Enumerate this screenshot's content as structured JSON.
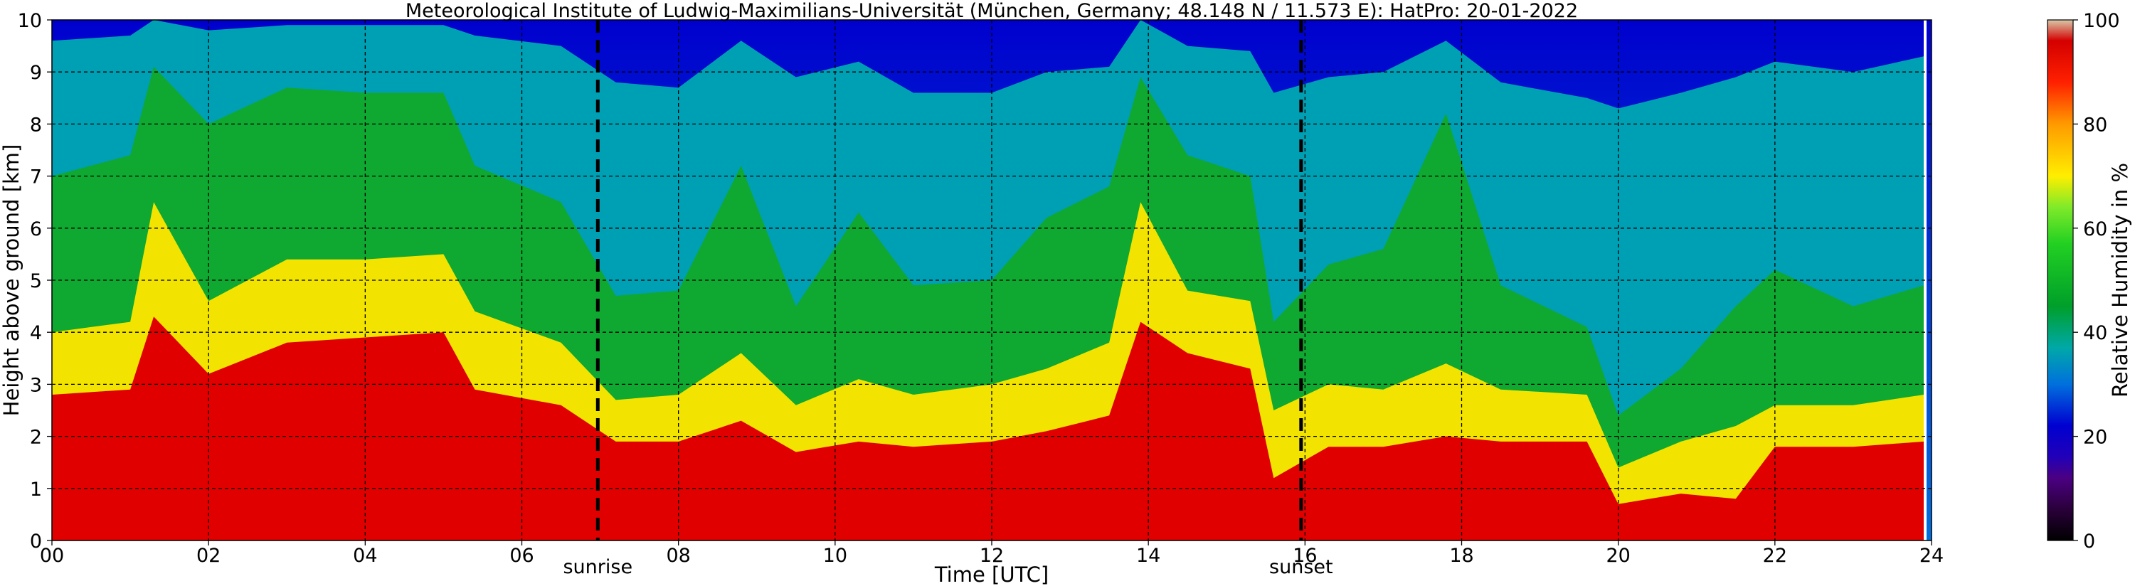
{
  "chart_data": {
    "type": "heatmap",
    "title": "Meteorological Institute of Ludwig-Maximilians-Universität (München, Germany; 48.148 N / 11.573 E):    HatPro: 20-01-2022",
    "xlabel": "Time [UTC]",
    "ylabel": "Height above ground [km]",
    "colorbar_label": "Relative Humidity in %",
    "xlim": [
      0,
      24
    ],
    "ylim": [
      0,
      10
    ],
    "clim": [
      0,
      100
    ],
    "x_ticks": [
      "00",
      "02",
      "04",
      "06",
      "08",
      "10",
      "12",
      "14",
      "16",
      "18",
      "20",
      "22",
      "24"
    ],
    "y_ticks": [
      "0",
      "1",
      "2",
      "3",
      "4",
      "5",
      "6",
      "7",
      "8",
      "9",
      "10"
    ],
    "colorbar_ticks": [
      "0",
      "20",
      "40",
      "60",
      "80",
      "100"
    ],
    "grid": true,
    "annotations": [
      {
        "label": "sunrise",
        "x": 6.97
      },
      {
        "label": "sunset",
        "x": 15.95
      }
    ],
    "colorscale": [
      "#000000",
      "#4b0082",
      "#0000cd",
      "#0070dd",
      "#00a8a8",
      "#009f2a",
      "#22d022",
      "#ffff00",
      "#ffaa00",
      "#ff2000",
      "#d40000",
      "#c8b4b4"
    ],
    "profiles_time": [
      0,
      1,
      1.3,
      2,
      3,
      4,
      5,
      5.4,
      6.5,
      7.2,
      8,
      8.8,
      9.5,
      10.3,
      11,
      12,
      12.7,
      13.5,
      13.9,
      14.5,
      15.3,
      15.6,
      16.3,
      17,
      17.8,
      18.5,
      19.6,
      20,
      20.8,
      21.5,
      22,
      23,
      23.9
    ],
    "profiles": {
      "lower_red_top_km": [
        2.8,
        2.9,
        4.3,
        3.2,
        3.8,
        3.9,
        4.0,
        2.9,
        2.6,
        1.9,
        1.9,
        2.3,
        1.7,
        1.9,
        1.8,
        1.9,
        2.1,
        2.4,
        4.2,
        3.6,
        3.3,
        1.2,
        1.8,
        1.8,
        2.0,
        1.9,
        1.9,
        0.7,
        0.9,
        0.8,
        1.8,
        1.8,
        1.9
      ],
      "yellow_top_km": [
        4.0,
        4.2,
        6.5,
        4.6,
        5.4,
        5.4,
        5.5,
        4.4,
        3.8,
        2.7,
        2.8,
        3.6,
        2.6,
        3.1,
        2.8,
        3.0,
        3.3,
        3.8,
        6.5,
        4.8,
        4.6,
        2.5,
        3.0,
        2.9,
        3.4,
        2.9,
        2.8,
        1.4,
        1.9,
        2.2,
        2.6,
        2.6,
        2.8
      ],
      "green_top_km": [
        7.0,
        7.4,
        9.1,
        8.0,
        8.7,
        8.6,
        8.6,
        7.2,
        6.5,
        4.7,
        4.8,
        7.2,
        4.5,
        6.3,
        4.9,
        5.0,
        6.2,
        6.8,
        8.9,
        7.4,
        7.0,
        4.2,
        5.3,
        5.6,
        8.2,
        4.9,
        4.1,
        2.4,
        3.3,
        4.5,
        5.2,
        4.5,
        4.9
      ],
      "cyan_top_km": [
        9.6,
        9.7,
        10.0,
        9.8,
        9.9,
        9.9,
        9.9,
        9.7,
        9.5,
        8.8,
        8.7,
        9.6,
        8.9,
        9.2,
        8.6,
        8.6,
        9.0,
        9.1,
        10.0,
        9.5,
        9.4,
        8.6,
        8.9,
        9.0,
        9.6,
        8.8,
        8.5,
        8.3,
        8.6,
        8.9,
        9.2,
        9.0,
        9.3
      ]
    }
  }
}
